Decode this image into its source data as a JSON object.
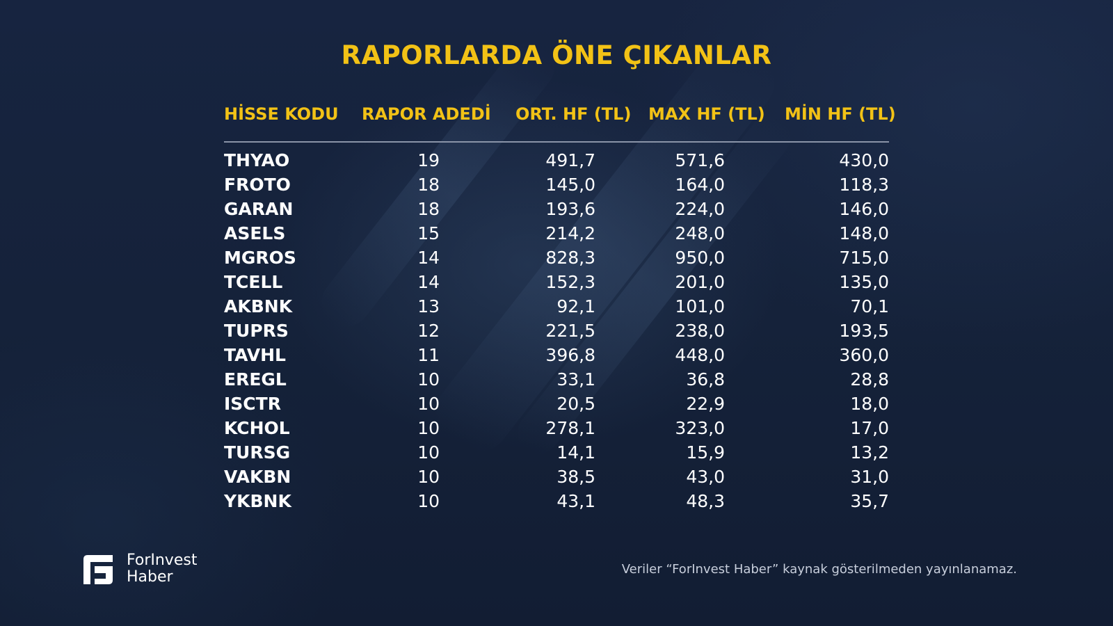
{
  "title": "RAPORLARDA ÖNE ÇIKANLAR",
  "table": {
    "headers": {
      "code": "HİSSE KODU",
      "count": "RAPOR ADEDİ",
      "avg": "ORT. HF (TL)",
      "max": "MAX HF (TL)",
      "min": "MİN HF (TL)"
    },
    "rows": [
      {
        "code": "THYAO",
        "count": "19",
        "avg": "491,7",
        "max": "571,6",
        "min": "430,0"
      },
      {
        "code": "FROTO",
        "count": "18",
        "avg": "145,0",
        "max": "164,0",
        "min": "118,3"
      },
      {
        "code": "GARAN",
        "count": "18",
        "avg": "193,6",
        "max": "224,0",
        "min": "146,0"
      },
      {
        "code": "ASELS",
        "count": "15",
        "avg": "214,2",
        "max": "248,0",
        "min": "148,0"
      },
      {
        "code": "MGROS",
        "count": "14",
        "avg": "828,3",
        "max": "950,0",
        "min": "715,0"
      },
      {
        "code": "TCELL",
        "count": "14",
        "avg": "152,3",
        "max": "201,0",
        "min": "135,0"
      },
      {
        "code": "AKBNK",
        "count": "13",
        "avg": "92,1",
        "max": "101,0",
        "min": "70,1"
      },
      {
        "code": "TUPRS",
        "count": "12",
        "avg": "221,5",
        "max": "238,0",
        "min": "193,5"
      },
      {
        "code": "TAVHL",
        "count": "11",
        "avg": "396,8",
        "max": "448,0",
        "min": "360,0"
      },
      {
        "code": "EREGL",
        "count": "10",
        "avg": "33,1",
        "max": "36,8",
        "min": "28,8"
      },
      {
        "code": "ISCTR",
        "count": "10",
        "avg": "20,5",
        "max": "22,9",
        "min": "18,0"
      },
      {
        "code": "KCHOL",
        "count": "10",
        "avg": "278,1",
        "max": "323,0",
        "min": "17,0"
      },
      {
        "code": "TURSG",
        "count": "10",
        "avg": "14,1",
        "max": "15,9",
        "min": "13,2"
      },
      {
        "code": "VAKBN",
        "count": "10",
        "avg": "38,5",
        "max": "43,0",
        "min": "31,0"
      },
      {
        "code": "YKBNK",
        "count": "10",
        "avg": "43,1",
        "max": "48,3",
        "min": "35,7"
      }
    ]
  },
  "brand": {
    "line1": "ForInvest",
    "line2": "Haber",
    "logo_icon": "forinvest-logo-icon"
  },
  "footnote": "Veriler “ForInvest Haber” kaynak gösterilmeden yayınlanamaz.",
  "colors": {
    "accent": "#f2c216",
    "background": "#15223a",
    "text": "#ffffff"
  }
}
